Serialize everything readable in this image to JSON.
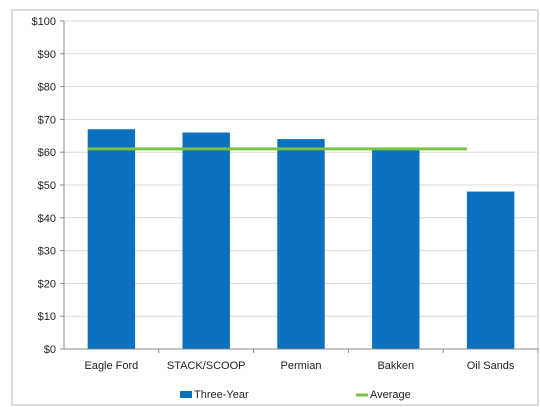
{
  "chart_data": {
    "type": "bar",
    "categories": [
      "Eagle Ford",
      "STACK/SCOOP",
      "Permian",
      "Bakken",
      "Oil Sands"
    ],
    "series": [
      {
        "name": "Three-Year",
        "type": "bar",
        "color": "#0a70c0",
        "values": [
          67,
          66,
          64,
          61,
          48
        ]
      },
      {
        "name": "Average",
        "type": "line",
        "color": "#7cc242",
        "values": [
          61,
          61,
          61,
          61,
          61
        ]
      }
    ],
    "ylim": [
      0,
      100
    ],
    "yticks": [
      0,
      10,
      20,
      30,
      40,
      50,
      60,
      70,
      80,
      90,
      100
    ],
    "ytick_labels": [
      "$0",
      "$10",
      "$20",
      "$30",
      "$40",
      "$50",
      "$60",
      "$70",
      "$80",
      "$90",
      "$100"
    ],
    "grid": true,
    "legend_position": "bottom",
    "legend": {
      "bar_label": "Three-Year",
      "line_label": "Average"
    }
  }
}
